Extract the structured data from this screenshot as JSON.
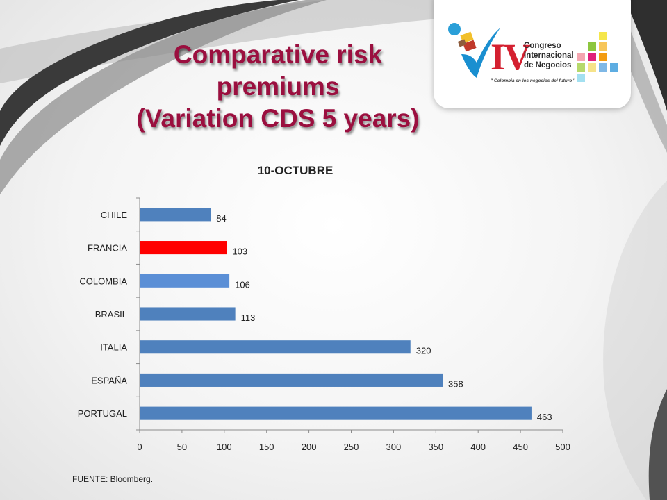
{
  "slide": {
    "title_lines": [
      "Comparative risk",
      "premiums",
      "(Variation CDS 5 years)"
    ],
    "source": "FUENTE: Bloomberg."
  },
  "logo": {
    "roman_numeral": "IV",
    "name_lines": [
      "Congreso",
      "Internacional",
      "de Negocios"
    ],
    "tagline": "\" Colombia en los negocios del futuro\""
  },
  "colors": {
    "title": "#9b0f3f",
    "bar_default": "#4f81bd",
    "bar_francia": "#ff0000",
    "bar_colombia": "#5b8fd6"
  },
  "chart_data": {
    "type": "bar",
    "orientation": "horizontal",
    "title": "10-OCTUBRE",
    "xlabel": "",
    "ylabel": "",
    "categories": [
      "CHILE",
      "FRANCIA",
      "COLOMBIA",
      "BRASIL",
      "ITALIA",
      "ESPAÑA",
      "PORTUGAL"
    ],
    "values": [
      84,
      103,
      106,
      113,
      320,
      358,
      463
    ],
    "bar_colors": [
      "#4f81bd",
      "#ff0000",
      "#5b8fd6",
      "#4f81bd",
      "#4f81bd",
      "#4f81bd",
      "#4f81bd"
    ],
    "data_labels": [
      "84",
      "103",
      "106",
      "113",
      "320",
      "358",
      "463"
    ],
    "xlim": [
      0,
      500
    ],
    "xticks": [
      0,
      50,
      100,
      150,
      200,
      250,
      300,
      350,
      400,
      450,
      500
    ],
    "xtick_labels": [
      "0",
      "50",
      "100",
      "150",
      "200",
      "250",
      "300",
      "350",
      "400",
      "450",
      "500"
    ],
    "grid": false,
    "legend": "none"
  }
}
